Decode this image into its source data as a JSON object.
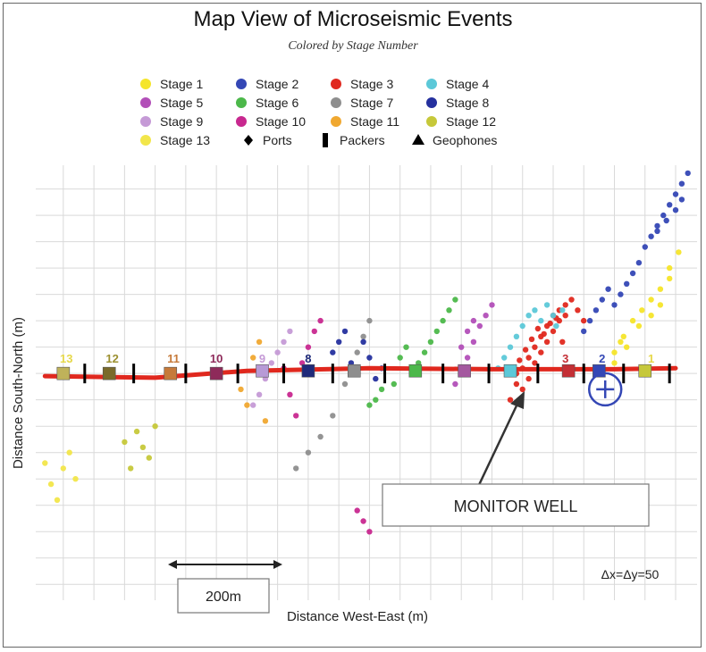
{
  "chart_data": {
    "type": "scatter",
    "title": "Map View of Microseismic Events",
    "subtitle": "Colored by Stage Number",
    "xlabel": "Distance West-East (m)",
    "ylabel": "Distance South-North (m)",
    "grid": true,
    "scale_bar_label": "200m",
    "spacing_note": "Δx=Δy=50",
    "annotation": "MONITOR WELL",
    "legend": [
      {
        "label": "Stage 1",
        "color": "#f5e52a",
        "marker": "circle"
      },
      {
        "label": "Stage 2",
        "color": "#3447b5",
        "marker": "circle"
      },
      {
        "label": "Stage 3",
        "color": "#e0281e",
        "marker": "circle"
      },
      {
        "label": "Stage 4",
        "color": "#5cc8d8",
        "marker": "circle"
      },
      {
        "label": "Stage 5",
        "color": "#b24fb8",
        "marker": "circle"
      },
      {
        "label": "Stage 6",
        "color": "#4cb84a",
        "marker": "circle"
      },
      {
        "label": "Stage 7",
        "color": "#8e8e8e",
        "marker": "circle"
      },
      {
        "label": "Stage 8",
        "color": "#25309e",
        "marker": "circle"
      },
      {
        "label": "Stage 9",
        "color": "#c59ad6",
        "marker": "circle"
      },
      {
        "label": "Stage 10",
        "color": "#c8288f",
        "marker": "circle"
      },
      {
        "label": "Stage 11",
        "color": "#f0a830",
        "marker": "circle"
      },
      {
        "label": "Stage 12",
        "color": "#c6c83a",
        "marker": "circle"
      },
      {
        "label": "Stage 13",
        "color": "#f2e64a",
        "marker": "circle"
      },
      {
        "label": "Ports",
        "color": "#000000",
        "marker": "diamond"
      },
      {
        "label": "Packers",
        "color": "#000000",
        "marker": "bar"
      },
      {
        "label": "Geophones",
        "color": "#000000",
        "marker": "triangle"
      }
    ],
    "stage_labels": [
      "13",
      "12",
      "11",
      "10",
      "9",
      "8",
      "3",
      "2",
      "1"
    ],
    "ports": [
      {
        "stage": "13",
        "x": -1200,
        "y": 0,
        "color": "#bfb25a"
      },
      {
        "stage": "12",
        "x": -1125,
        "y": 0,
        "color": "#7a6a2a"
      },
      {
        "stage": "11",
        "x": -1025,
        "y": 0,
        "color": "#c67a3a"
      },
      {
        "stage": "10",
        "x": -950,
        "y": 0,
        "color": "#8e2a5a"
      },
      {
        "stage": "9",
        "x": -875,
        "y": 5,
        "color": "#b79ad6"
      },
      {
        "stage": "8",
        "x": -800,
        "y": 5,
        "color": "#1f2a7a"
      },
      {
        "stage": "7",
        "x": -725,
        "y": 5,
        "color": "#8e8e8e"
      },
      {
        "stage": "6",
        "x": -625,
        "y": 5,
        "color": "#4cb84a"
      },
      {
        "stage": "5",
        "x": -545,
        "y": 5,
        "color": "#a4589f"
      },
      {
        "stage": "4",
        "x": -470,
        "y": 5,
        "color": "#5cc8d8"
      },
      {
        "stage": "3",
        "x": -375,
        "y": 5,
        "color": "#c42f35"
      },
      {
        "stage": "2",
        "x": -325,
        "y": 5,
        "color": "#3447b5"
      },
      {
        "stage": "1",
        "x": -250,
        "y": 5,
        "color": "#c6c83a"
      }
    ],
    "packers_x": [
      -1165,
      -1085,
      -1000,
      -915,
      -840,
      -760,
      -675,
      -580,
      -505,
      -425,
      -350,
      -285,
      -210
    ],
    "wellbore": [
      [
        -1230,
        -5
      ],
      [
        -1050,
        -8
      ],
      [
        -900,
        5
      ],
      [
        -700,
        10
      ],
      [
        -500,
        8
      ],
      [
        -300,
        8
      ],
      [
        -200,
        10
      ]
    ],
    "monitor_well": {
      "x": -315,
      "y": -30
    },
    "xlim": [
      -1245,
      -165
    ],
    "ylim": [
      -430,
      395
    ],
    "series": [
      {
        "name": "Stage 1",
        "color": "#f5e52a",
        "x": [
          -300,
          -285,
          -270,
          -255,
          -240,
          -225,
          -210,
          -195,
          -300,
          -280,
          -260,
          -240,
          -225,
          -210,
          -290
        ],
        "y": [
          40,
          70,
          100,
          120,
          140,
          160,
          200,
          230,
          20,
          50,
          90,
          110,
          130,
          180,
          60
        ]
      },
      {
        "name": "Stage 2",
        "color": "#3447b5",
        "x": [
          -350,
          -340,
          -330,
          -320,
          -310,
          -300,
          -290,
          -280,
          -270,
          -260,
          -250,
          -240,
          -230,
          -220,
          -210,
          -200,
          -190,
          -180,
          -190,
          -200,
          -215,
          -230
        ],
        "y": [
          80,
          100,
          120,
          140,
          160,
          130,
          150,
          170,
          190,
          210,
          240,
          260,
          280,
          300,
          320,
          340,
          360,
          380,
          330,
          310,
          290,
          270
        ]
      },
      {
        "name": "Stage 3",
        "color": "#e0281e",
        "x": [
          -470,
          -460,
          -450,
          -440,
          -430,
          -420,
          -410,
          -400,
          -390,
          -380,
          -370,
          -360,
          -350,
          -440,
          -430,
          -420,
          -410,
          -400,
          -390,
          -380,
          -450,
          -460,
          -455,
          -445,
          -435,
          -425,
          -415,
          -405,
          -395,
          -385
        ],
        "y": [
          -50,
          -20,
          10,
          30,
          50,
          70,
          90,
          110,
          120,
          130,
          140,
          120,
          100,
          -10,
          20,
          40,
          60,
          80,
          100,
          110,
          -30,
          0,
          25,
          45,
          65,
          85,
          75,
          95,
          105,
          60
        ]
      },
      {
        "name": "Stage 4",
        "color": "#5cc8d8",
        "x": [
          -490,
          -480,
          -470,
          -460,
          -450,
          -440,
          -430,
          -420,
          -410,
          -400,
          -395,
          -385
        ],
        "y": [
          10,
          30,
          50,
          70,
          90,
          110,
          120,
          100,
          130,
          110,
          90,
          120
        ]
      },
      {
        "name": "Stage 5",
        "color": "#b24fb8",
        "x": [
          -560,
          -550,
          -540,
          -530,
          -520,
          -510,
          -500,
          -550,
          -540,
          -530
        ],
        "y": [
          -20,
          10,
          30,
          60,
          90,
          110,
          130,
          50,
          80,
          100
        ]
      },
      {
        "name": "Stage 6",
        "color": "#4cb84a",
        "x": [
          -630,
          -620,
          -610,
          -600,
          -590,
          -580,
          -570,
          -560,
          -680,
          -690,
          -700,
          -660,
          -650,
          -640
        ],
        "y": [
          0,
          20,
          40,
          60,
          80,
          100,
          120,
          140,
          -30,
          -50,
          -60,
          -20,
          30,
          50
        ]
      },
      {
        "name": "Stage 7",
        "color": "#8e8e8e",
        "x": [
          -720,
          -710,
          -700,
          -730,
          -740,
          -760,
          -780,
          -800,
          -820
        ],
        "y": [
          40,
          70,
          100,
          10,
          -20,
          -80,
          -120,
          -150,
          -180
        ]
      },
      {
        "name": "Stage 8",
        "color": "#25309e",
        "x": [
          -760,
          -750,
          -740,
          -730,
          -720,
          -710,
          -700,
          -680,
          -690
        ],
        "y": [
          40,
          60,
          80,
          20,
          0,
          60,
          30,
          10,
          -10
        ]
      },
      {
        "name": "Stage 9",
        "color": "#c59ad6",
        "x": [
          -860,
          -850,
          -840,
          -870,
          -880,
          -890,
          -830
        ],
        "y": [
          20,
          40,
          60,
          -10,
          -40,
          -60,
          80
        ]
      },
      {
        "name": "Stage 10",
        "color": "#c8288f",
        "x": [
          -840,
          -830,
          -820,
          -810,
          -800,
          -790,
          -780,
          -720,
          -710,
          -700
        ],
        "y": [
          10,
          -40,
          -80,
          20,
          50,
          80,
          100,
          -260,
          -280,
          -300
        ]
      },
      {
        "name": "Stage 11",
        "color": "#f0a830",
        "x": [
          -910,
          -900,
          -890,
          -880,
          -870
        ],
        "y": [
          -30,
          -60,
          30,
          60,
          -90
        ]
      },
      {
        "name": "Stage 12",
        "color": "#c6c83a",
        "x": [
          -1080,
          -1070,
          -1060,
          -1090,
          -1100,
          -1050
        ],
        "y": [
          -110,
          -140,
          -160,
          -180,
          -130,
          -100
        ]
      },
      {
        "name": "Stage 13",
        "color": "#f2e64a",
        "x": [
          -1230,
          -1220,
          -1210,
          -1200,
          -1190,
          -1180
        ],
        "y": [
          -170,
          -210,
          -240,
          -180,
          -150,
          -200
        ]
      }
    ]
  }
}
